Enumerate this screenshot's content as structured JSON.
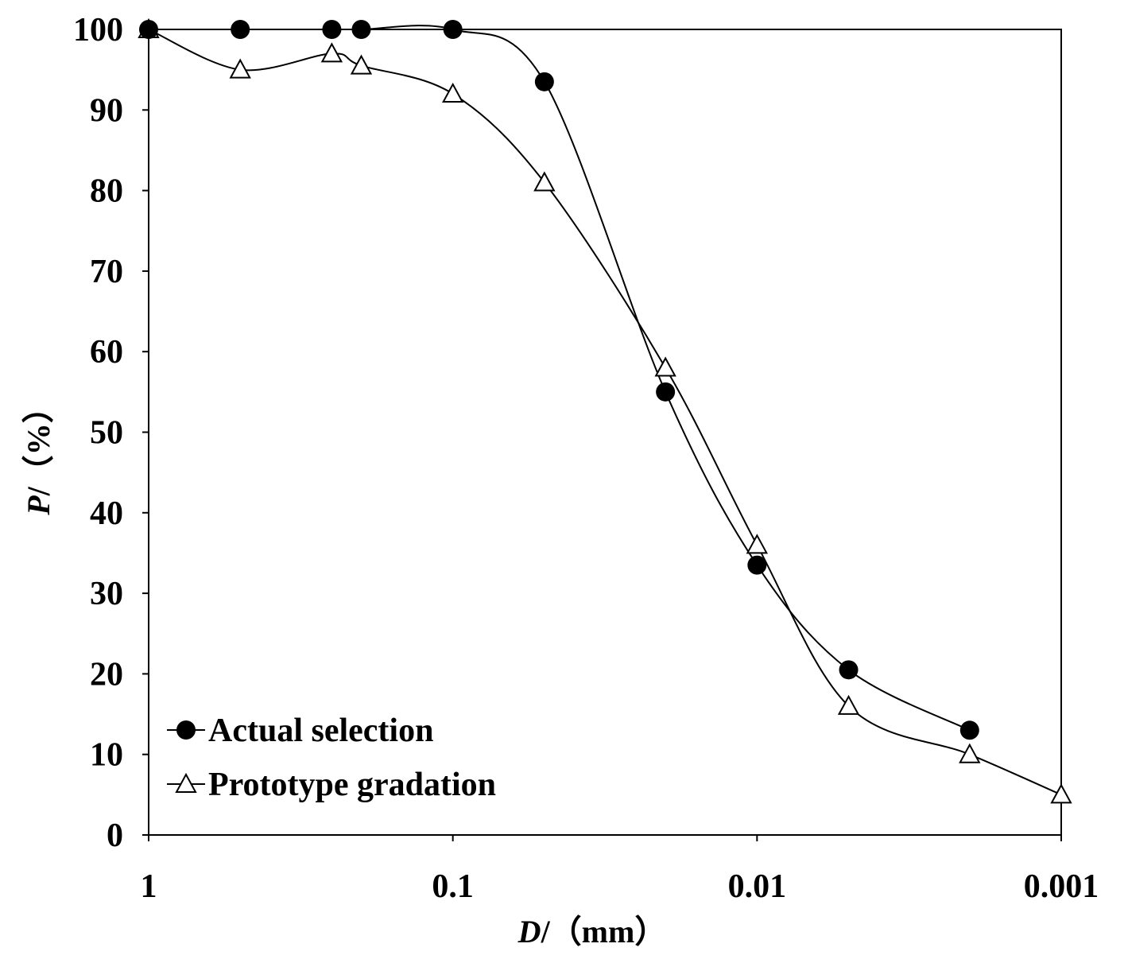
{
  "chart_data": {
    "type": "line",
    "title": "",
    "xlabel": "D/（mm）",
    "xlabel_var": "D",
    "xlabel_rest": "/（mm）",
    "ylabel": "P/（%）",
    "ylabel_var": "P",
    "ylabel_rest": "/（%）",
    "x_scale": "log",
    "x_reversed": true,
    "xlim": [
      1,
      0.001
    ],
    "ylim": [
      0,
      100
    ],
    "x_ticks": [
      1,
      0.1,
      0.01,
      0.001
    ],
    "x_tick_labels": [
      "1",
      "0.1",
      "0.01",
      "0.001"
    ],
    "y_ticks": [
      0,
      10,
      20,
      30,
      40,
      50,
      60,
      70,
      80,
      90,
      100
    ],
    "y_tick_labels": [
      "0",
      "10",
      "20",
      "30",
      "40",
      "50",
      "60",
      "70",
      "80",
      "90",
      "100"
    ],
    "grid": false,
    "legend_position": "bottom-left",
    "series": [
      {
        "name": "Actual selection",
        "marker": "filled-circle",
        "color": "#000000",
        "x": [
          1,
          0.5,
          0.25,
          0.2,
          0.1,
          0.05,
          0.02,
          0.01,
          0.005,
          0.002
        ],
        "y": [
          100,
          100,
          100,
          100,
          100,
          93.5,
          55,
          33.5,
          20.5,
          13
        ]
      },
      {
        "name": "Prototype gradation",
        "marker": "open-triangle",
        "color": "#000000",
        "x": [
          1,
          0.5,
          0.25,
          0.2,
          0.1,
          0.05,
          0.02,
          0.01,
          0.005,
          0.002,
          0.001
        ],
        "y": [
          100,
          95,
          97,
          95.5,
          92,
          81,
          58,
          36,
          16,
          10,
          5
        ]
      }
    ]
  }
}
